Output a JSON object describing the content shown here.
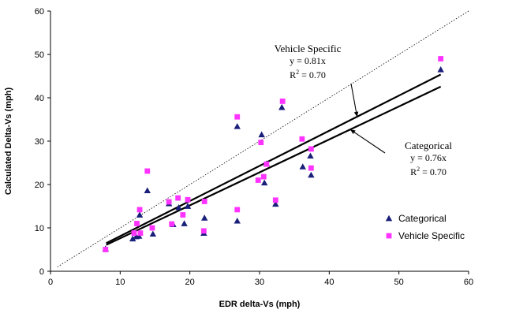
{
  "chart_data": {
    "type": "scatter",
    "title": "",
    "xlabel": "EDR delta-Vs (mph)",
    "ylabel": "Calculated Delta-Vs (mph)",
    "xlim": [
      0,
      60
    ],
    "ylim": [
      0,
      60
    ],
    "x_ticks": [
      "0",
      "10",
      "20",
      "30",
      "40",
      "50",
      "60"
    ],
    "y_ticks": [
      "0",
      "10",
      "20",
      "30",
      "40",
      "50",
      "60"
    ],
    "grid": false,
    "legend_position": "bottom-right",
    "colors": {
      "categorical": "#1a1f7a",
      "vehicle_specific": "#ff33ff",
      "reference_line": "#000000"
    },
    "series": [
      {
        "name": "Categorical",
        "marker": "triangle",
        "points": [
          [
            7.9,
            5.2
          ],
          [
            11.8,
            7.5
          ],
          [
            12.3,
            8.0
          ],
          [
            12.7,
            8.1
          ],
          [
            12.8,
            13.0
          ],
          [
            13.9,
            18.6
          ],
          [
            14.7,
            8.6
          ],
          [
            17.0,
            15.6
          ],
          [
            17.6,
            10.8
          ],
          [
            18.4,
            14.7
          ],
          [
            19.2,
            11.0
          ],
          [
            19.7,
            15.0
          ],
          [
            22.0,
            8.8
          ],
          [
            22.1,
            12.3
          ],
          [
            26.8,
            11.6
          ],
          [
            26.8,
            33.4
          ],
          [
            30.3,
            31.5
          ],
          [
            30.7,
            20.4
          ],
          [
            31.0,
            24.8
          ],
          [
            32.3,
            15.5
          ],
          [
            33.2,
            37.8
          ],
          [
            36.2,
            24.1
          ],
          [
            37.3,
            26.6
          ],
          [
            37.4,
            22.2
          ],
          [
            56.0,
            46.5
          ]
        ]
      },
      {
        "name": "Vehicle Specific",
        "marker": "square",
        "points": [
          [
            7.9,
            5.0
          ],
          [
            12.0,
            8.8
          ],
          [
            12.4,
            11.0
          ],
          [
            12.8,
            14.2
          ],
          [
            12.9,
            8.8
          ],
          [
            13.9,
            23.1
          ],
          [
            14.6,
            10.0
          ],
          [
            17.0,
            16.0
          ],
          [
            17.4,
            10.9
          ],
          [
            18.3,
            16.9
          ],
          [
            19.0,
            13.0
          ],
          [
            19.7,
            16.5
          ],
          [
            22.0,
            9.3
          ],
          [
            22.1,
            16.1
          ],
          [
            26.8,
            35.6
          ],
          [
            26.8,
            14.2
          ],
          [
            29.8,
            21.0
          ],
          [
            30.2,
            29.7
          ],
          [
            30.6,
            21.8
          ],
          [
            31.0,
            24.7
          ],
          [
            32.3,
            16.4
          ],
          [
            33.3,
            39.2
          ],
          [
            36.1,
            30.5
          ],
          [
            37.4,
            28.2
          ],
          [
            37.4,
            23.8
          ],
          [
            56.0,
            49.0
          ]
        ]
      }
    ],
    "reference_line": {
      "style": "dotted",
      "slope": 1
    },
    "trendlines": [
      {
        "series": "Vehicle Specific",
        "slope": 0.81,
        "x_range": [
          8,
          56
        ]
      },
      {
        "series": "Categorical",
        "slope": 0.76,
        "x_range": [
          8,
          56
        ]
      }
    ],
    "annotations": [
      {
        "series": "Vehicle Specific",
        "label": "Vehicle Specific",
        "equation": "y = 0.81x",
        "r2_prefix": "R",
        "r2_sup": "2",
        "r2_suffix": " = 0.70",
        "arrow_to": [
          44,
          35.6
        ]
      },
      {
        "series": "Categorical",
        "label": "Categorical",
        "equation": "y = 0.76x",
        "r2_prefix": "R",
        "r2_sup": "2",
        "r2_suffix": " = 0.70",
        "arrow_to": [
          43,
          32.7
        ]
      }
    ]
  }
}
